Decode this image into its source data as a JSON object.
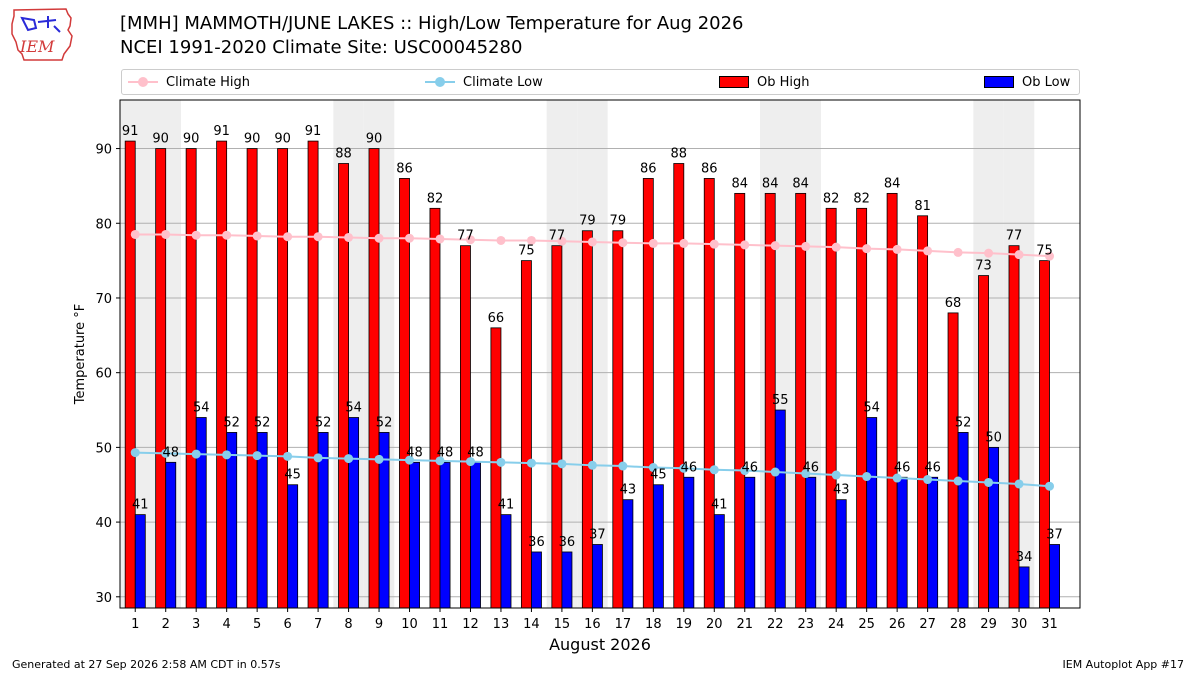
{
  "header": {
    "title": "[MMH] MAMMOTH/JUNE LAKES :: High/Low Temperature for Aug 2026",
    "subtitle": "NCEI 1991-2020 Climate Site: USC00045280"
  },
  "logo": {
    "text": "IEM"
  },
  "footer": {
    "left": "Generated at 27 Sep 2026 2:58 AM CDT in 0.57s",
    "right": "IEM Autoplot App #17"
  },
  "legend": {
    "climate_high": "Climate High",
    "climate_low": "Climate Low",
    "ob_high": "Ob High",
    "ob_low": "Ob Low"
  },
  "colors": {
    "ob_high": "#ff0000",
    "ob_low": "#0000ff",
    "climate_high": "#ffc0cb",
    "climate_low": "#87ceeb",
    "weekend_band": "#eeeeee"
  },
  "chart_data": {
    "type": "bar",
    "xlabel": "August 2026",
    "ylabel": "Temperature °F",
    "ylim": [
      28.5,
      96.5
    ],
    "yticks": [
      30,
      40,
      50,
      60,
      70,
      80,
      90
    ],
    "grid": true,
    "categories": [
      "1",
      "2",
      "3",
      "4",
      "5",
      "6",
      "7",
      "8",
      "9",
      "10",
      "11",
      "12",
      "13",
      "14",
      "15",
      "16",
      "17",
      "18",
      "19",
      "20",
      "21",
      "22",
      "23",
      "24",
      "25",
      "26",
      "27",
      "28",
      "29",
      "30",
      "31"
    ],
    "weekend_days": [
      1,
      2,
      8,
      9,
      15,
      16,
      22,
      23,
      29,
      30
    ],
    "series": [
      {
        "name": "Ob High",
        "type": "bar",
        "values": [
          91,
          90,
          90,
          91,
          90,
          90,
          91,
          88,
          90,
          86,
          82,
          77,
          66,
          75,
          77,
          79,
          79,
          86,
          88,
          86,
          84,
          84,
          84,
          82,
          82,
          84,
          81,
          68,
          73,
          77,
          75
        ]
      },
      {
        "name": "Ob Low",
        "type": "bar",
        "values": [
          41,
          48,
          54,
          52,
          52,
          45,
          52,
          54,
          52,
          48,
          48,
          48,
          41,
          36,
          36,
          37,
          43,
          45,
          46,
          41,
          46,
          55,
          46,
          43,
          54,
          46,
          46,
          52,
          50,
          34,
          37
        ]
      },
      {
        "name": "Climate High",
        "type": "line",
        "values": [
          78.5,
          78.5,
          78.4,
          78.4,
          78.3,
          78.2,
          78.2,
          78.1,
          78.0,
          78.0,
          77.9,
          77.8,
          77.7,
          77.7,
          77.6,
          77.5,
          77.4,
          77.3,
          77.3,
          77.2,
          77.1,
          77.0,
          76.9,
          76.8,
          76.6,
          76.5,
          76.3,
          76.1,
          76.0,
          75.8,
          75.6
        ]
      },
      {
        "name": "Climate Low",
        "type": "line",
        "values": [
          49.3,
          49.2,
          49.1,
          49.0,
          48.9,
          48.8,
          48.6,
          48.5,
          48.4,
          48.3,
          48.2,
          48.1,
          48.0,
          47.9,
          47.8,
          47.6,
          47.5,
          47.3,
          47.2,
          47.0,
          46.9,
          46.7,
          46.5,
          46.3,
          46.1,
          45.9,
          45.7,
          45.5,
          45.3,
          45.1,
          44.8
        ]
      }
    ]
  }
}
